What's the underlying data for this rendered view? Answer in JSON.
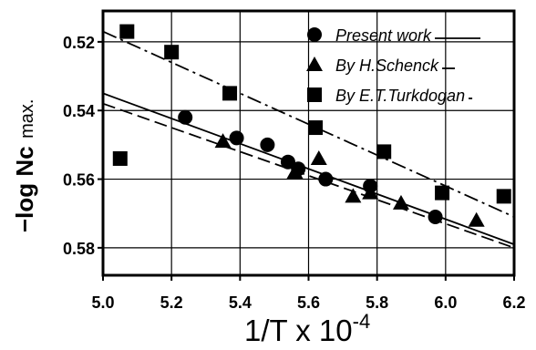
{
  "chart_data": {
    "type": "scatter",
    "xlabel": "1/T x 10",
    "xlabel_exponent": "-4",
    "ylabel_main": "−log Nc",
    "ylabel_suffix": "max.",
    "xlim": [
      5.0,
      6.2
    ],
    "ylim": [
      0.588,
      0.511
    ],
    "y_inverted": true,
    "x_ticks": [
      "5.0",
      "5.2",
      "5.4",
      "5.6",
      "5.8",
      "6.0",
      "6.2"
    ],
    "y_ticks": [
      "0.52",
      "0.54",
      "0.56",
      "0.58"
    ],
    "grid": true,
    "legend_position": "top-right",
    "series": [
      {
        "name": "Present work",
        "marker": "circle",
        "line_style": "solid",
        "x": [
          5.24,
          5.39,
          5.48,
          5.54,
          5.57,
          5.65,
          5.78,
          5.97
        ],
        "y": [
          0.542,
          0.548,
          0.55,
          0.555,
          0.557,
          0.56,
          0.562,
          0.571
        ]
      },
      {
        "name": "By H.Schenck",
        "marker": "triangle",
        "line_style": "dashed",
        "x": [
          5.35,
          5.56,
          5.63,
          5.73,
          5.78,
          5.87,
          6.09
        ],
        "y": [
          0.549,
          0.558,
          0.554,
          0.565,
          0.564,
          0.567,
          0.572
        ]
      },
      {
        "name": "By E.T.Turkdogan",
        "marker": "square",
        "line_style": "dash-dot",
        "x": [
          5.07,
          5.05,
          5.2,
          5.37,
          5.62,
          5.82,
          5.99,
          6.17
        ],
        "y": [
          0.517,
          0.554,
          0.523,
          0.535,
          0.545,
          0.552,
          0.564,
          0.565
        ]
      }
    ],
    "fit_lines": [
      {
        "series": "Present work",
        "line_style": "solid",
        "x": [
          5.0,
          6.2
        ],
        "y": [
          0.535,
          0.579
        ]
      },
      {
        "series": "By H.Schenck",
        "line_style": "dashed",
        "x": [
          5.0,
          6.2
        ],
        "y": [
          0.538,
          0.58
        ]
      },
      {
        "series": "By E.T.Turkdogan",
        "line_style": "dash-dot",
        "x": [
          5.0,
          6.2
        ],
        "y": [
          0.517,
          0.571
        ]
      }
    ]
  }
}
